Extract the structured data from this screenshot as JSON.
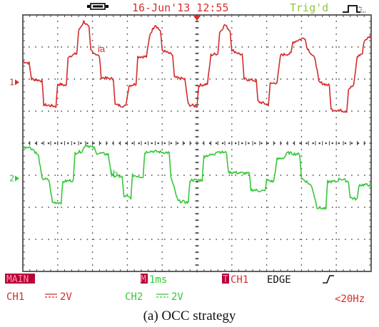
{
  "header": {
    "date_time": "16-Jun'13 12:55",
    "trigger_status": "Trig'd"
  },
  "footer": {
    "mode": "MAIN",
    "timebase_marker": "M",
    "timebase": "1ms",
    "trigger_marker": "T",
    "trigger_source": "CH1",
    "trigger_type": "EDGE",
    "ch1_label": "CH1",
    "ch1_coupling": "⎓",
    "ch1_scale": "2V",
    "ch2_label": "CH2",
    "ch2_coupling": "⎓",
    "ch2_scale": "2V",
    "frequency": "<20Hz"
  },
  "caption": "(a) OCC strategy",
  "colors": {
    "ch1": "#d42c2c",
    "ch2": "#36c83a",
    "header_text": "#d43030",
    "trig_text": "#8fc63c",
    "grid": "#444444",
    "main_bg": "#b8003a",
    "main_text": "#ff9aa8"
  },
  "chart_data": {
    "type": "line",
    "title": "",
    "xlabel": "",
    "ylabel": "",
    "grid": true,
    "divisions": {
      "x": 10,
      "y": 8
    },
    "xlim_div": [
      0,
      10
    ],
    "ylim_div": [
      -4,
      4
    ],
    "series": [
      {
        "name": "ia",
        "channel": "1",
        "ground_div": 1.9,
        "points": [
          [
            0.0,
            0.65
          ],
          [
            0.18,
            0.6
          ],
          [
            0.25,
            0.1
          ],
          [
            0.55,
            0.05
          ],
          [
            0.6,
            -0.7
          ],
          [
            0.95,
            -0.75
          ],
          [
            1.0,
            -0.05
          ],
          [
            1.25,
            -0.1
          ],
          [
            1.3,
            0.8
          ],
          [
            1.55,
            0.9
          ],
          [
            1.6,
            1.6
          ],
          [
            1.75,
            1.9
          ],
          [
            1.9,
            1.7
          ],
          [
            1.95,
            1.0
          ],
          [
            2.2,
            0.8
          ],
          [
            2.25,
            0.15
          ],
          [
            2.6,
            0.1
          ],
          [
            2.65,
            -0.7
          ],
          [
            2.95,
            -0.75
          ],
          [
            3.05,
            -0.1
          ],
          [
            3.25,
            -0.05
          ],
          [
            3.3,
            0.8
          ],
          [
            3.55,
            0.8
          ],
          [
            3.65,
            1.5
          ],
          [
            3.8,
            1.8
          ],
          [
            3.95,
            1.6
          ],
          [
            4.0,
            1.0
          ],
          [
            4.3,
            0.85
          ],
          [
            4.35,
            0.15
          ],
          [
            4.65,
            0.1
          ],
          [
            4.75,
            -0.7
          ],
          [
            5.0,
            -0.75
          ],
          [
            5.05,
            -0.1
          ],
          [
            5.3,
            -0.05
          ],
          [
            5.4,
            0.85
          ],
          [
            5.6,
            0.9
          ],
          [
            5.65,
            1.55
          ],
          [
            5.8,
            1.8
          ],
          [
            5.95,
            1.6
          ],
          [
            6.0,
            1.0
          ],
          [
            6.3,
            0.85
          ],
          [
            6.35,
            0.1
          ],
          [
            6.7,
            0.05
          ],
          [
            6.75,
            -0.6
          ],
          [
            7.05,
            -0.7
          ],
          [
            7.1,
            -0.05
          ],
          [
            7.3,
            0.0
          ],
          [
            7.4,
            0.85
          ],
          [
            7.7,
            0.9
          ],
          [
            7.75,
            1.25
          ],
          [
            8.1,
            1.4
          ],
          [
            8.15,
            1.1
          ],
          [
            8.4,
            0.7
          ],
          [
            8.5,
            0.0
          ],
          [
            8.8,
            -0.1
          ],
          [
            8.85,
            -0.85
          ],
          [
            9.3,
            -0.9
          ],
          [
            9.35,
            -0.2
          ],
          [
            9.5,
            -0.1
          ],
          [
            9.6,
            0.8
          ],
          [
            9.75,
            0.9
          ],
          [
            9.8,
            1.3
          ],
          [
            10.0,
            1.45
          ]
        ]
      },
      {
        "name": "ib",
        "channel": "2",
        "ground_div": -1.1,
        "points": [
          [
            0.0,
            0.95
          ],
          [
            0.15,
            1.0
          ],
          [
            0.3,
            0.9
          ],
          [
            0.45,
            0.7
          ],
          [
            0.55,
            0.0
          ],
          [
            0.75,
            -0.05
          ],
          [
            0.85,
            -0.75
          ],
          [
            1.1,
            -0.75
          ],
          [
            1.15,
            -0.1
          ],
          [
            1.45,
            -0.05
          ],
          [
            1.5,
            0.8
          ],
          [
            1.7,
            0.85
          ],
          [
            1.8,
            1.05
          ],
          [
            2.05,
            0.95
          ],
          [
            2.1,
            0.8
          ],
          [
            2.45,
            0.75
          ],
          [
            2.55,
            0.1
          ],
          [
            2.85,
            0.05
          ],
          [
            2.9,
            -0.55
          ],
          [
            3.1,
            -0.6
          ],
          [
            3.15,
            0.1
          ],
          [
            3.45,
            0.05
          ],
          [
            3.5,
            0.8
          ],
          [
            3.6,
            0.85
          ],
          [
            3.7,
            0.85
          ],
          [
            4.2,
            0.8
          ],
          [
            4.25,
            0.05
          ],
          [
            4.45,
            -0.7
          ],
          [
            4.75,
            -0.75
          ],
          [
            4.8,
            -0.05
          ],
          [
            5.15,
            -0.05
          ],
          [
            5.2,
            0.7
          ],
          [
            5.5,
            0.75
          ],
          [
            5.55,
            0.85
          ],
          [
            5.85,
            0.8
          ],
          [
            5.9,
            0.2
          ],
          [
            6.5,
            0.15
          ],
          [
            6.55,
            -0.35
          ],
          [
            6.95,
            -0.4
          ],
          [
            7.0,
            -0.05
          ],
          [
            7.2,
            -0.1
          ],
          [
            7.3,
            0.6
          ],
          [
            7.5,
            0.65
          ],
          [
            7.6,
            0.8
          ],
          [
            7.95,
            0.75
          ],
          [
            8.0,
            0.0
          ],
          [
            8.15,
            -0.1
          ],
          [
            8.3,
            -0.25
          ],
          [
            8.45,
            -0.9
          ],
          [
            8.7,
            -0.95
          ],
          [
            8.75,
            -0.1
          ],
          [
            9.0,
            -0.1
          ],
          [
            9.1,
            0.0
          ],
          [
            9.35,
            -0.1
          ],
          [
            9.4,
            -0.6
          ],
          [
            9.6,
            -0.65
          ],
          [
            9.65,
            -0.2
          ],
          [
            10.0,
            -0.2
          ]
        ]
      }
    ]
  }
}
